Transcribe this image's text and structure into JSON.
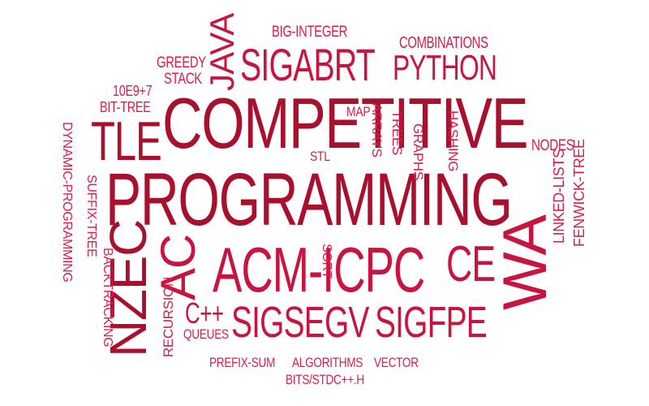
{
  "words": {
    "competitive": "COMPETITIVE",
    "programming": "PROGRAMMING",
    "acm_icpc": "ACM-ICPC",
    "sigsegv": "SIGSEGV",
    "sigfpe": "SIGFPE",
    "sigabrt": "SIGABRT",
    "python": "PYTHON",
    "java": "JAVA",
    "tle": "TLE",
    "nzec": "NZEC",
    "ac": "AC",
    "wa": "WA",
    "ce": "CE",
    "cpp": "C++",
    "big_integer": "BIG-INTEGER",
    "combinations": "COMBINATIONS",
    "greedy": "GREEDY",
    "stack": "STACK",
    "mod": "10E9+7",
    "bit_tree": "BIT-TREE",
    "map": "MAP",
    "stl": "STL",
    "arrays": "ARRAYS",
    "trees": "TREES",
    "graphs": "GRAPHS",
    "hashing": "HASHING",
    "nodes": "NODES",
    "linked_lists": "LINKED-LISTS",
    "fenwick_tree": "FENWICK-TREE",
    "dynamic_programming": "DYNAMIC-PROGRAMMING",
    "suffix_tree": "SUFFIX-TREE",
    "backtracking": "BACKTRACKING",
    "recursion": "RECURSION",
    "queues": "QUEUES",
    "sort": "SORT",
    "prefix_sum": "PREFIX-SUM",
    "algorithms": "ALGORITHMS",
    "vector": "VECTOR",
    "bits_stdc": "BITS/STDC++.H"
  },
  "colors": {
    "dark": "#a8102e",
    "medium": "#c8153f",
    "light": "#d81d4c",
    "background": "#ffffff"
  }
}
